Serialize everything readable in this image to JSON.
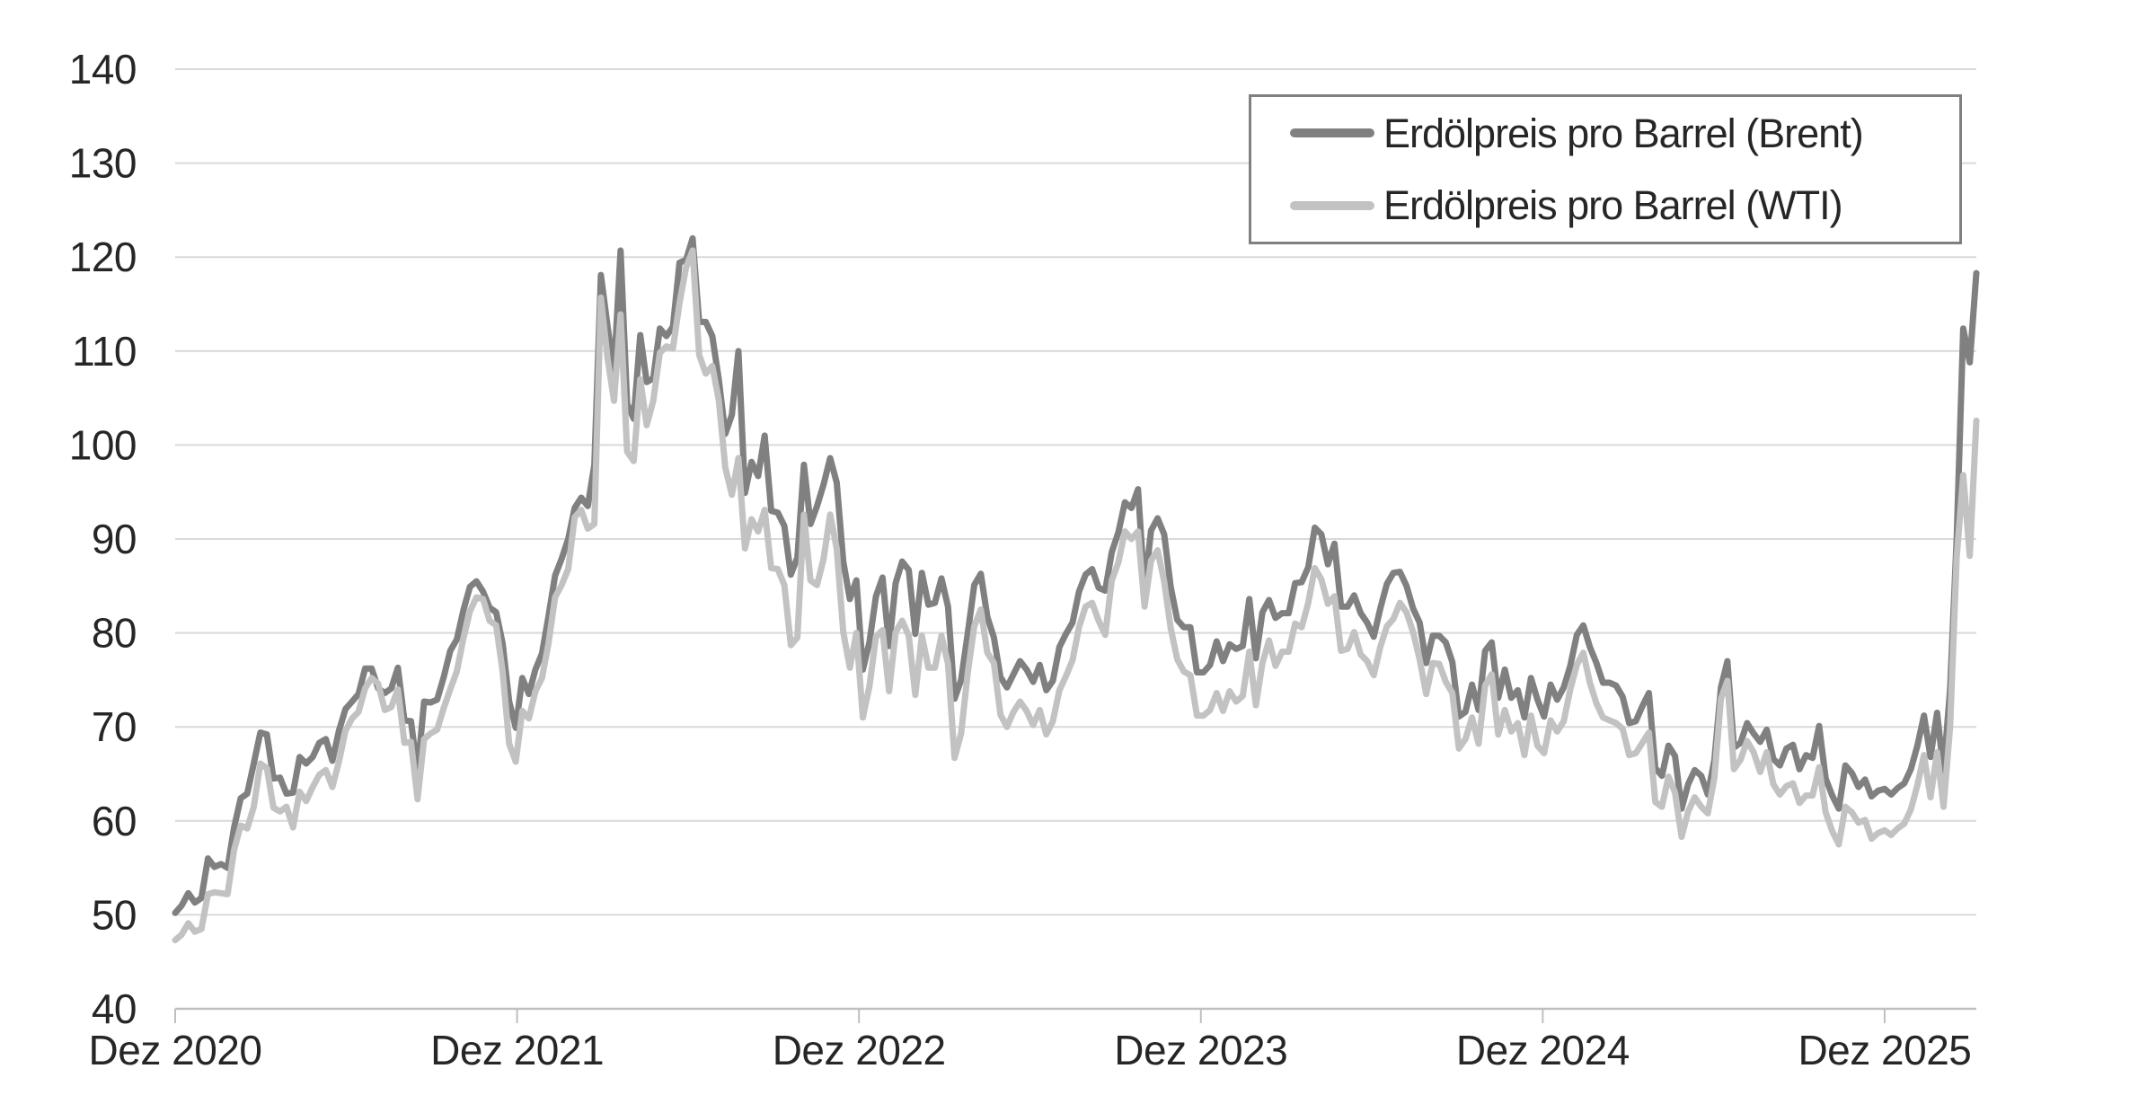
{
  "colors": {
    "background": "#FFFFFF",
    "gridline": "#D9D9D9",
    "axis_line": "#BFBFBF",
    "tick_mark": "#BFBFBF",
    "label_text": "#262626",
    "legend_border": "#808080",
    "brent": "#808080",
    "wti": "#C2C2C2"
  },
  "legend": {
    "position": "top-right",
    "items": [
      {
        "label": "Erdölpreis pro Barrel (Brent)",
        "swatch": "line-swatch",
        "color": "#808080"
      },
      {
        "label": "Erdölpreis pro Barrel (WTI)",
        "swatch": "line-swatch",
        "color": "#C2C2C2"
      }
    ]
  },
  "chart_data": {
    "type": "line",
    "title": "",
    "xlabel": "",
    "ylabel": "",
    "ylim": [
      40,
      140
    ],
    "y_ticks": [
      40,
      50,
      60,
      70,
      80,
      90,
      100,
      110,
      120,
      130,
      140
    ],
    "x_tick_labels": [
      "Dez 2020",
      "Dez 2021",
      "Dez 2022",
      "Dez 2023",
      "Dez 2024",
      "Dez 2025"
    ],
    "x_weeks_per_tick_interval": 52.2,
    "grid": "horizontal-only",
    "x_range_note": "weekly points, Dec 2020 through ~Mar 2026",
    "series": [
      {
        "name": "Erdölpreis pro Barrel (Brent)",
        "color": "#808080",
        "values": [
          50.2,
          51.0,
          52.3,
          51.3,
          51.8,
          56.0,
          55.1,
          55.4,
          55.0,
          59.3,
          62.4,
          62.9,
          66.1,
          69.4,
          69.2,
          64.5,
          64.6,
          62.9,
          63.0,
          66.8,
          66.1,
          66.8,
          68.3,
          68.7,
          66.4,
          69.6,
          71.9,
          72.7,
          73.5,
          76.2,
          76.2,
          74.1,
          73.6,
          74.1,
          76.3,
          70.7,
          70.6,
          65.2,
          72.7,
          72.6,
          72.9,
          75.3,
          78.1,
          79.3,
          82.4,
          84.9,
          85.5,
          84.4,
          82.7,
          82.2,
          78.9,
          72.7,
          69.9,
          75.2,
          73.5,
          76.1,
          77.8,
          81.8,
          86.1,
          87.9,
          90.0,
          93.3,
          94.4,
          93.5,
          97.9,
          118.1,
          112.7,
          107.9,
          120.7,
          104.4,
          102.8,
          111.7,
          106.7,
          107.1,
          112.4,
          111.6,
          112.6,
          119.4,
          119.7,
          122.0,
          113.1,
          113.1,
          111.6,
          107.0,
          101.2,
          103.2,
          110.0,
          94.9,
          98.2,
          96.7,
          101.0,
          93.0,
          92.8,
          91.4,
          86.2,
          88.0,
          97.9,
          91.6,
          93.5,
          95.8,
          98.6,
          96.0,
          87.6,
          83.6,
          85.6,
          76.1,
          79.0,
          83.9,
          85.9,
          78.6,
          85.3,
          87.6,
          86.7,
          79.9,
          86.4,
          83.0,
          83.2,
          85.8,
          82.8,
          73.0,
          75.0,
          79.9,
          85.1,
          86.3,
          81.7,
          79.5,
          75.3,
          74.2,
          75.6,
          77.0,
          76.1,
          74.8,
          76.6,
          73.9,
          74.9,
          78.5,
          79.9,
          81.1,
          84.4,
          86.2,
          86.8,
          84.8,
          84.5,
          88.6,
          90.7,
          93.9,
          93.3,
          95.3,
          84.6,
          90.9,
          92.2,
          90.5,
          84.9,
          81.4,
          80.6,
          80.6,
          75.8,
          75.8,
          76.6,
          79.1,
          77.0,
          78.8,
          78.3,
          78.6,
          83.6,
          77.3,
          82.2,
          83.5,
          81.6,
          82.1,
          82.1,
          85.3,
          85.4,
          87.0,
          91.2,
          90.5,
          87.3,
          89.5,
          82.8,
          82.8,
          84.0,
          82.1,
          81.1,
          79.6,
          82.6,
          85.2,
          86.4,
          86.5,
          85.0,
          82.6,
          81.1,
          76.8,
          79.7,
          79.7,
          79.0,
          76.9,
          71.1,
          71.6,
          74.5,
          71.8,
          78.1,
          79.0,
          73.1,
          76.1,
          73.1,
          73.9,
          71.0,
          75.2,
          72.9,
          71.1,
          74.5,
          72.9,
          74.2,
          76.5,
          79.8,
          80.8,
          78.5,
          76.8,
          74.7,
          74.7,
          74.4,
          73.2,
          70.4,
          70.6,
          72.2,
          73.6,
          65.6,
          64.8,
          68.0,
          66.9,
          61.3,
          63.9,
          65.4,
          64.8,
          62.8,
          66.5,
          74.2,
          77.0,
          67.8,
          68.3,
          70.4,
          69.3,
          68.4,
          69.7,
          66.6,
          65.9,
          67.7,
          68.1,
          65.5,
          67.0,
          66.7,
          70.1,
          64.5,
          62.7,
          61.3,
          65.9,
          65.1,
          63.6,
          64.4,
          62.6,
          63.2,
          63.4,
          62.8,
          63.5,
          64.0,
          65.5,
          68.0,
          71.2,
          66.8,
          71.5,
          65.3,
          74.0,
          90.0,
          112.4,
          108.8,
          118.3
        ]
      },
      {
        "name": "Erdölpreis pro Barrel (WTI)",
        "color": "#C2C2C2",
        "values": [
          47.3,
          47.9,
          49.1,
          48.2,
          48.5,
          52.2,
          52.4,
          52.3,
          52.2,
          56.9,
          59.5,
          59.2,
          61.5,
          66.1,
          65.6,
          61.4,
          61.0,
          61.5,
          59.3,
          63.1,
          62.1,
          63.6,
          64.9,
          65.4,
          63.6,
          66.3,
          69.6,
          70.9,
          71.6,
          74.1,
          75.2,
          74.6,
          71.8,
          72.1,
          74.0,
          68.3,
          68.4,
          62.3,
          68.7,
          69.3,
          69.7,
          72.0,
          74.0,
          75.9,
          79.4,
          82.3,
          83.8,
          83.6,
          81.3,
          80.8,
          75.9,
          68.2,
          66.3,
          71.7,
          70.9,
          73.8,
          75.2,
          78.9,
          83.8,
          85.1,
          86.8,
          92.3,
          93.1,
          91.1,
          91.6,
          115.7,
          109.3,
          104.7,
          113.9,
          99.3,
          98.3,
          107.0,
          102.1,
          104.7,
          109.8,
          110.5,
          110.3,
          115.1,
          118.9,
          120.7,
          109.6,
          107.6,
          108.4,
          104.8,
          97.6,
          94.7,
          98.6,
          89.0,
          92.1,
          90.8,
          93.1,
          86.9,
          86.8,
          85.1,
          78.7,
          79.5,
          92.6,
          85.6,
          85.1,
          87.9,
          92.6,
          89.0,
          80.1,
          76.3,
          80.0,
          71.0,
          74.3,
          79.6,
          80.3,
          73.8,
          80.1,
          81.3,
          79.7,
          73.4,
          79.7,
          76.3,
          76.3,
          79.7,
          76.7,
          66.7,
          69.3,
          75.7,
          80.7,
          82.5,
          77.9,
          76.8,
          71.3,
          70.0,
          71.6,
          72.7,
          71.7,
          70.2,
          71.8,
          69.2,
          70.6,
          73.9,
          75.4,
          77.1,
          80.6,
          82.8,
          83.2,
          81.3,
          79.8,
          85.6,
          87.5,
          90.8,
          90.0,
          90.8,
          82.8,
          87.7,
          88.8,
          85.5,
          80.5,
          77.2,
          75.9,
          75.5,
          71.2,
          71.2,
          71.8,
          73.6,
          71.7,
          73.8,
          72.7,
          73.3,
          78.0,
          72.3,
          76.8,
          79.2,
          76.5,
          78.0,
          78.0,
          81.0,
          80.6,
          83.2,
          86.9,
          85.7,
          83.1,
          83.9,
          78.1,
          78.3,
          80.1,
          77.7,
          77.0,
          75.5,
          78.5,
          80.7,
          81.5,
          83.2,
          82.2,
          80.1,
          77.2,
          73.5,
          76.8,
          76.7,
          74.8,
          73.6,
          67.7,
          68.7,
          71.0,
          68.2,
          74.4,
          75.6,
          69.2,
          71.8,
          69.5,
          70.4,
          67.0,
          71.2,
          68.0,
          67.2,
          70.7,
          69.5,
          70.6,
          74.0,
          76.6,
          77.9,
          74.7,
          72.5,
          71.0,
          70.7,
          70.4,
          69.8,
          67.0,
          67.2,
          68.3,
          69.4,
          62.0,
          61.5,
          64.7,
          63.0,
          58.3,
          61.0,
          62.5,
          61.5,
          60.8,
          64.6,
          73.0,
          74.9,
          65.5,
          66.5,
          68.5,
          67.3,
          65.2,
          67.3,
          63.9,
          62.8,
          63.7,
          64.0,
          61.9,
          62.7,
          62.7,
          65.7,
          60.9,
          58.9,
          57.5,
          61.5,
          60.9,
          59.8,
          60.1,
          58.1,
          58.7,
          59.0,
          58.5,
          59.2,
          59.7,
          61.2,
          63.8,
          67.0,
          62.5,
          67.3,
          61.5,
          70.0,
          88.0,
          96.8,
          88.2,
          102.6
        ]
      }
    ]
  }
}
